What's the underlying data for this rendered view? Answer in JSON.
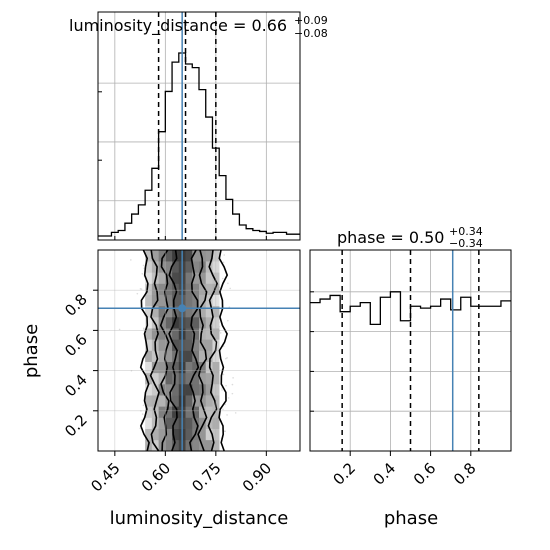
{
  "chart_data": [
    {
      "type": "histogram",
      "panel": "top-left",
      "parameter": "luminosity_distance",
      "title": {
        "prefix": "luminosity_distance = 0.66",
        "upper": "+0.09",
        "lower": "−0.08"
      },
      "xlim": [
        0.4,
        1.0
      ],
      "ylim": [
        0,
        1
      ],
      "bin_edges": [
        0.4,
        0.42,
        0.44,
        0.46,
        0.48,
        0.5,
        0.52,
        0.54,
        0.56,
        0.58,
        0.6,
        0.62,
        0.64,
        0.66,
        0.68,
        0.7,
        0.72,
        0.74,
        0.76,
        0.78,
        0.8,
        0.82,
        0.84,
        0.86,
        0.88,
        0.9,
        0.92,
        0.94,
        0.96,
        0.98,
        1.0
      ],
      "counts": [
        0.0,
        0.0,
        0.02,
        0.03,
        0.07,
        0.12,
        0.17,
        0.25,
        0.37,
        0.57,
        0.79,
        0.95,
        1.0,
        0.94,
        0.92,
        0.8,
        0.65,
        0.48,
        0.33,
        0.2,
        0.12,
        0.06,
        0.04,
        0.03,
        0.025,
        0.015,
        0.02,
        0.02,
        0.01,
        0.01
      ],
      "quantile_lines": [
        0.58,
        0.66,
        0.75
      ],
      "truth": 0.65,
      "grid": true
    },
    {
      "type": "histogram",
      "panel": "bottom-right",
      "parameter": "phase",
      "title": {
        "prefix": "phase = 0.50",
        "upper": "+0.34",
        "lower": "−0.34"
      },
      "xlim": [
        0.0,
        1.0
      ],
      "ylim": [
        0,
        1
      ],
      "bin_edges": [
        0.0,
        0.05,
        0.1,
        0.15,
        0.2,
        0.25,
        0.3,
        0.35,
        0.4,
        0.45,
        0.5,
        0.55,
        0.6,
        0.65,
        0.7,
        0.75,
        0.8,
        0.85,
        0.9,
        0.95,
        1.0
      ],
      "counts": [
        0.82,
        0.84,
        0.86,
        0.77,
        0.8,
        0.82,
        0.7,
        0.85,
        0.88,
        0.72,
        0.8,
        0.79,
        0.8,
        0.84,
        0.78,
        0.85,
        0.8,
        0.8,
        0.8,
        0.83
      ],
      "quantile_lines": [
        0.16,
        0.5,
        0.84
      ],
      "truth": 0.71,
      "xticks": [
        {
          "value": 0.2,
          "label": "0.2"
        },
        {
          "value": 0.4,
          "label": "0.4"
        },
        {
          "value": 0.6,
          "label": "0.6"
        },
        {
          "value": 0.8,
          "label": "0.8"
        }
      ],
      "xlabel": "phase",
      "grid": true
    },
    {
      "type": "heatmap",
      "panel": "bottom-left",
      "description_kind": "2D posterior density with contours",
      "x_parameter": "luminosity_distance",
      "y_parameter": "phase",
      "xlim": [
        0.4,
        1.0
      ],
      "ylim": [
        0.0,
        1.0
      ],
      "truth": {
        "x": 0.65,
        "y": 0.71
      },
      "density_columns": [
        {
          "x0": 0.54,
          "x1": 0.56,
          "level": 0.18
        },
        {
          "x0": 0.56,
          "x1": 0.58,
          "level": 0.3
        },
        {
          "x0": 0.58,
          "x1": 0.6,
          "level": 0.45
        },
        {
          "x0": 0.6,
          "x1": 0.62,
          "level": 0.62
        },
        {
          "x0": 0.62,
          "x1": 0.64,
          "level": 0.8
        },
        {
          "x0": 0.64,
          "x1": 0.66,
          "level": 0.88
        },
        {
          "x0": 0.66,
          "x1": 0.68,
          "level": 0.78
        },
        {
          "x0": 0.68,
          "x1": 0.7,
          "level": 0.6
        },
        {
          "x0": 0.7,
          "x1": 0.72,
          "level": 0.45
        },
        {
          "x0": 0.72,
          "x1": 0.74,
          "level": 0.3
        },
        {
          "x0": 0.74,
          "x1": 0.76,
          "level": 0.18
        }
      ],
      "contours_x": [
        {
          "left": 0.54,
          "right": 0.77
        },
        {
          "left": 0.57,
          "right": 0.74
        },
        {
          "left": 0.6,
          "right": 0.71
        },
        {
          "left": 0.625,
          "right": 0.685
        }
      ],
      "xticks": [
        {
          "value": 0.45,
          "label": "0.45"
        },
        {
          "value": 0.6,
          "label": "0.60"
        },
        {
          "value": 0.75,
          "label": "0.75"
        },
        {
          "value": 0.9,
          "label": "0.90"
        }
      ],
      "yticks": [
        {
          "value": 0.2,
          "label": "0.2"
        },
        {
          "value": 0.4,
          "label": "0.4"
        },
        {
          "value": 0.6,
          "label": "0.6"
        },
        {
          "value": 0.8,
          "label": "0.8"
        }
      ],
      "xlabel": "luminosity_distance",
      "ylabel": "phase",
      "grid": true
    }
  ],
  "colors": {
    "histogram_line": "#000000",
    "quantile_line": "#000000",
    "truth_line": "#4682b4",
    "grid": "#b0b0b0",
    "axes_frame": "#000000",
    "density_dark": "#3a3a3a",
    "density_light": "#e6e6e6"
  }
}
